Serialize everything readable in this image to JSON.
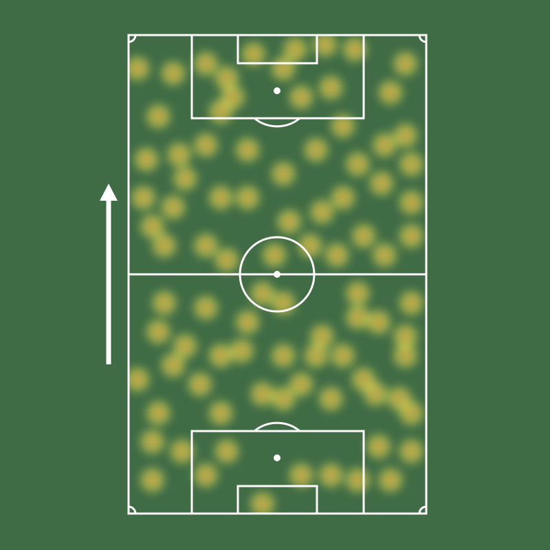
{
  "chart_data": {
    "type": "heatmap",
    "xlim": [
      0,
      100
    ],
    "ylim": [
      0,
      100
    ],
    "color": "#f2f25a",
    "hot_color": "#ff3a10",
    "x": [
      5,
      6,
      12,
      26,
      26,
      33,
      56,
      66,
      76,
      88,
      93,
      77,
      85,
      95,
      65,
      79,
      52,
      40,
      26,
      17,
      10,
      3,
      15,
      31,
      35,
      52,
      58,
      68,
      72,
      63,
      93,
      95,
      86,
      33,
      49,
      61,
      72,
      40,
      31,
      15,
      19,
      42,
      95,
      86,
      8,
      70,
      54,
      10,
      26,
      12,
      40,
      52,
      45,
      65,
      77,
      93,
      93,
      84,
      91,
      83,
      68,
      58,
      52,
      45,
      31,
      24,
      10,
      8,
      18,
      3,
      15,
      38,
      52,
      63,
      72,
      79,
      95,
      68,
      77,
      88,
      95,
      84,
      26,
      8,
      58,
      45,
      33,
      77,
      19,
      31,
      95
    ],
    "y": [
      66,
      74,
      56,
      56,
      94,
      91,
      97,
      98,
      97,
      88,
      94,
      73,
      69,
      65,
      63,
      58,
      71,
      76,
      77,
      75,
      83,
      93,
      92,
      84,
      87,
      93,
      87,
      89,
      81,
      76,
      79,
      73,
      77,
      53,
      54,
      56,
      66,
      66,
      66,
      64,
      70,
      96,
      58,
      54,
      60,
      54,
      61,
      38,
      43,
      44,
      40,
      44,
      46,
      37,
      46,
      37,
      33,
      40,
      24,
      25,
      24,
      27,
      24,
      25,
      21,
      27,
      21,
      15,
      13,
      28,
      31,
      34,
      33,
      33,
      33,
      28,
      44,
      8,
      7,
      7,
      13,
      14,
      8,
      7,
      8,
      2,
      13,
      41,
      35,
      33,
      21
    ]
  }
}
